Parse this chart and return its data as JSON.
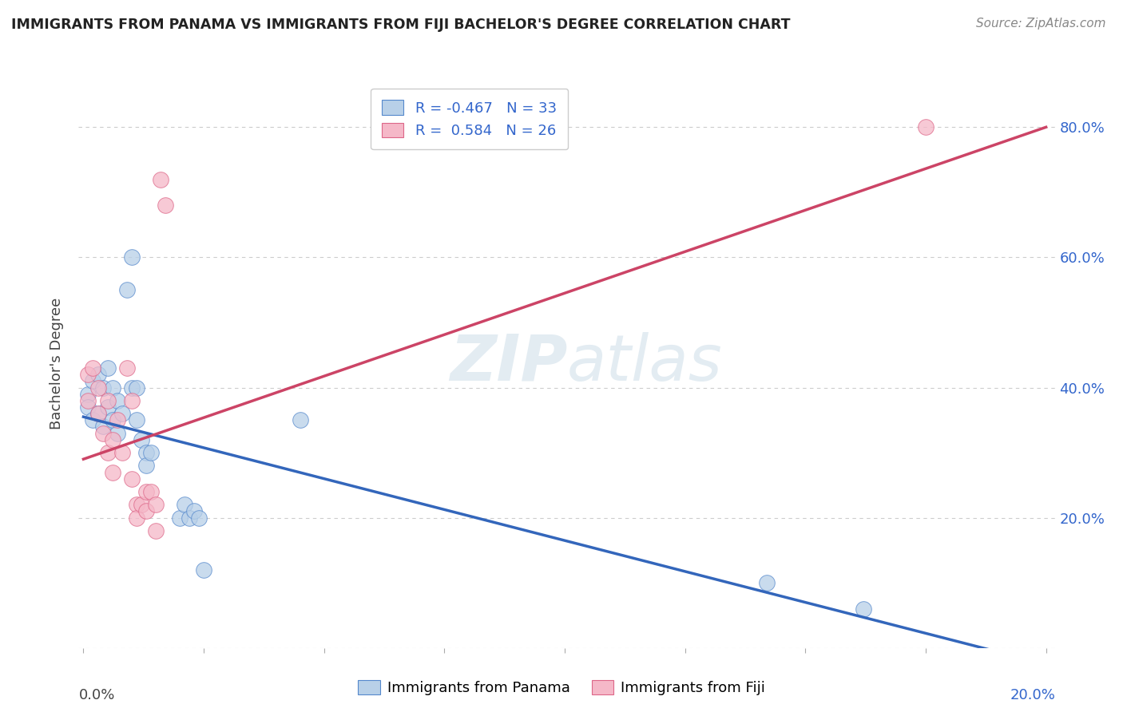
{
  "title": "IMMIGRANTS FROM PANAMA VS IMMIGRANTS FROM FIJI BACHELOR'S DEGREE CORRELATION CHART",
  "source": "Source: ZipAtlas.com",
  "ylabel": "Bachelor's Degree",
  "blue_R": -0.467,
  "blue_N": 33,
  "pink_R": 0.584,
  "pink_N": 26,
  "blue_color": "#b8d0e8",
  "pink_color": "#f5b8c8",
  "blue_edge_color": "#5588cc",
  "pink_edge_color": "#dd6688",
  "blue_line_color": "#3366bb",
  "pink_line_color": "#cc4466",
  "legend_text_color": "#3366cc",
  "background_color": "#ffffff",
  "grid_color": "#cccccc",
  "watermark": "ZIPatlas",
  "blue_points_x": [
    0.001,
    0.001,
    0.002,
    0.002,
    0.003,
    0.003,
    0.004,
    0.004,
    0.005,
    0.005,
    0.006,
    0.006,
    0.007,
    0.007,
    0.008,
    0.009,
    0.01,
    0.01,
    0.011,
    0.011,
    0.012,
    0.013,
    0.013,
    0.014,
    0.02,
    0.021,
    0.022,
    0.023,
    0.024,
    0.025,
    0.045,
    0.142,
    0.162
  ],
  "blue_points_y": [
    0.39,
    0.37,
    0.41,
    0.35,
    0.42,
    0.36,
    0.4,
    0.34,
    0.43,
    0.37,
    0.4,
    0.35,
    0.38,
    0.33,
    0.36,
    0.55,
    0.6,
    0.4,
    0.4,
    0.35,
    0.32,
    0.3,
    0.28,
    0.3,
    0.2,
    0.22,
    0.2,
    0.21,
    0.2,
    0.12,
    0.35,
    0.1,
    0.06
  ],
  "pink_points_x": [
    0.001,
    0.001,
    0.002,
    0.003,
    0.003,
    0.004,
    0.005,
    0.005,
    0.006,
    0.006,
    0.007,
    0.008,
    0.009,
    0.01,
    0.01,
    0.011,
    0.011,
    0.012,
    0.013,
    0.013,
    0.014,
    0.015,
    0.015,
    0.016,
    0.017,
    0.175
  ],
  "pink_points_y": [
    0.42,
    0.38,
    0.43,
    0.4,
    0.36,
    0.33,
    0.38,
    0.3,
    0.32,
    0.27,
    0.35,
    0.3,
    0.43,
    0.38,
    0.26,
    0.22,
    0.2,
    0.22,
    0.24,
    0.21,
    0.24,
    0.22,
    0.18,
    0.72,
    0.68,
    0.8
  ],
  "blue_line_x": [
    0.0,
    0.2
  ],
  "blue_line_y": [
    0.355,
    -0.025
  ],
  "pink_line_x": [
    0.0,
    0.2
  ],
  "pink_line_y": [
    0.29,
    0.8
  ],
  "xlim": [
    -0.001,
    0.202
  ],
  "ylim": [
    0.0,
    0.875
  ],
  "yticks": [
    0.0,
    0.2,
    0.4,
    0.6,
    0.8
  ],
  "ytick_labels_right": [
    "",
    "20.0%",
    "40.0%",
    "60.0%",
    "80.0%"
  ],
  "xticks": [
    0.0,
    0.025,
    0.05,
    0.075,
    0.1,
    0.125,
    0.15,
    0.175,
    0.2
  ]
}
